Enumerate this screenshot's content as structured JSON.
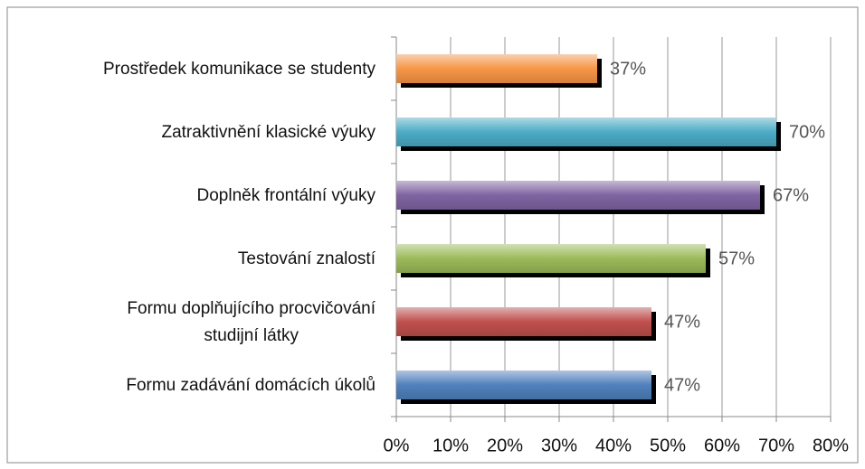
{
  "chart_data": {
    "type": "bar",
    "orientation": "horizontal",
    "categories": [
      "Prostředek komunikace se studenty",
      "Zatraktivnění klasické výuky",
      "Doplněk frontální výuky",
      "Testování znalostí",
      "Formu doplňujícího procvičování\nstudijní látky",
      "Formu zadávání domácích úkolů"
    ],
    "values": [
      37,
      70,
      67,
      57,
      47,
      47
    ],
    "value_labels": [
      "37%",
      "70%",
      "67%",
      "57%",
      "47%",
      "47%"
    ],
    "colors": [
      "#f79646",
      "#4bacc6",
      "#8064a2",
      "#9bbb59",
      "#c0504d",
      "#4f81bd"
    ],
    "xlim": [
      0,
      80
    ],
    "xticks": [
      {
        "value": 0,
        "label": "0%"
      },
      {
        "value": 10,
        "label": "10%"
      },
      {
        "value": 20,
        "label": "20%"
      },
      {
        "value": 30,
        "label": "30%"
      },
      {
        "value": 40,
        "label": "40%"
      },
      {
        "value": 50,
        "label": "50%"
      },
      {
        "value": 60,
        "label": "60%"
      },
      {
        "value": 70,
        "label": "70%"
      },
      {
        "value": 80,
        "label": "80%"
      }
    ],
    "grid": true
  }
}
